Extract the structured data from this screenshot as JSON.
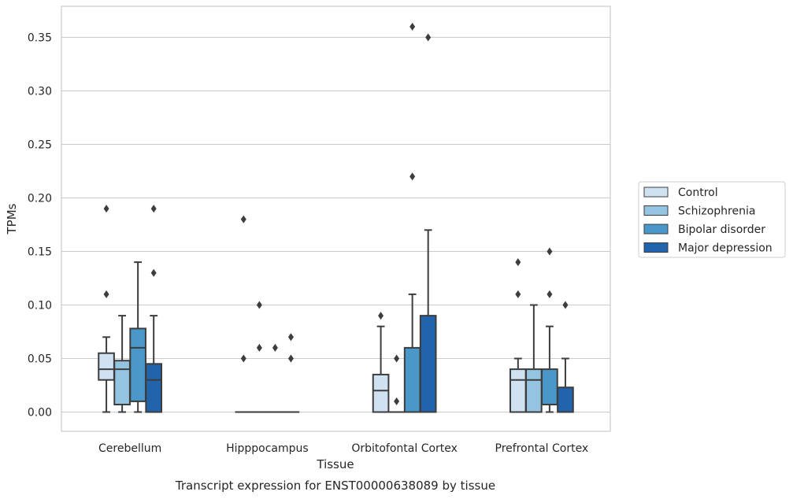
{
  "chart_data": {
    "type": "box",
    "title": "Transcript expression for ENST00000638089 by tissue",
    "xlabel": "Tissue",
    "ylabel": "TPMs",
    "ylim": [
      -0.018,
      0.379
    ],
    "yticks": [
      "0.00",
      "0.05",
      "0.10",
      "0.15",
      "0.20",
      "0.25",
      "0.30",
      "0.35"
    ],
    "grid": "horizontal",
    "legend_position": "right",
    "categories": [
      "Cerebellum",
      "Hipppocampus",
      "Orbitofontal Cortex",
      "Prefrontal Cortex"
    ],
    "series": [
      {
        "name": "Control",
        "color": "#d0e1f2",
        "boxes": [
          {
            "whislo": 0.0,
            "q1": 0.03,
            "med": 0.04,
            "q3": 0.055,
            "whishi": 0.07,
            "fliers": [
              0.11,
              0.19
            ]
          },
          {
            "whislo": 0.0,
            "q1": 0.0,
            "med": 0.0,
            "q3": 0.0,
            "whishi": 0.0,
            "fliers": [
              0.05,
              0.18
            ]
          },
          {
            "whislo": 0.0,
            "q1": 0.0,
            "med": 0.02,
            "q3": 0.035,
            "whishi": 0.08,
            "fliers": [
              0.09
            ]
          },
          {
            "whislo": 0.0,
            "q1": 0.0,
            "med": 0.03,
            "q3": 0.04,
            "whishi": 0.05,
            "fliers": [
              0.11,
              0.14
            ]
          }
        ]
      },
      {
        "name": "Schizophrenia",
        "color": "#94c4df",
        "boxes": [
          {
            "whislo": 0.0,
            "q1": 0.007,
            "med": 0.04,
            "q3": 0.048,
            "whishi": 0.09,
            "fliers": []
          },
          {
            "whislo": 0.0,
            "q1": 0.0,
            "med": 0.0,
            "q3": 0.0,
            "whishi": 0.0,
            "fliers": [
              0.06,
              0.1
            ]
          },
          {
            "whislo": 0.0,
            "q1": 0.0,
            "med": 0.0,
            "q3": 0.0,
            "whishi": 0.0,
            "fliers": [
              0.01,
              0.05
            ]
          },
          {
            "whislo": 0.0,
            "q1": 0.0,
            "med": 0.03,
            "q3": 0.04,
            "whishi": 0.1,
            "fliers": []
          }
        ]
      },
      {
        "name": "Bipolar disorder",
        "color": "#4a98c9",
        "boxes": [
          {
            "whislo": 0.0,
            "q1": 0.01,
            "med": 0.06,
            "q3": 0.078,
            "whishi": 0.14,
            "fliers": []
          },
          {
            "whislo": 0.0,
            "q1": 0.0,
            "med": 0.0,
            "q3": 0.0,
            "whishi": 0.0,
            "fliers": [
              0.06
            ]
          },
          {
            "whislo": 0.0,
            "q1": 0.0,
            "med": 0.0,
            "q3": 0.06,
            "whishi": 0.11,
            "fliers": [
              0.22,
              0.36
            ]
          },
          {
            "whislo": 0.0,
            "q1": 0.007,
            "med": 0.007,
            "q3": 0.04,
            "whishi": 0.08,
            "fliers": [
              0.11,
              0.15
            ]
          }
        ]
      },
      {
        "name": "Major depression",
        "color": "#2164ab",
        "boxes": [
          {
            "whislo": 0.0,
            "q1": 0.0,
            "med": 0.03,
            "q3": 0.045,
            "whishi": 0.09,
            "fliers": [
              0.13,
              0.19
            ]
          },
          {
            "whislo": 0.0,
            "q1": 0.0,
            "med": 0.0,
            "q3": 0.0,
            "whishi": 0.0,
            "fliers": [
              0.05,
              0.07
            ]
          },
          {
            "whislo": 0.0,
            "q1": 0.0,
            "med": 0.0,
            "q3": 0.09,
            "whishi": 0.17,
            "fliers": [
              0.35
            ]
          },
          {
            "whislo": 0.0,
            "q1": 0.0,
            "med": 0.0,
            "q3": 0.023,
            "whishi": 0.05,
            "fliers": [
              0.1
            ]
          }
        ]
      }
    ]
  }
}
